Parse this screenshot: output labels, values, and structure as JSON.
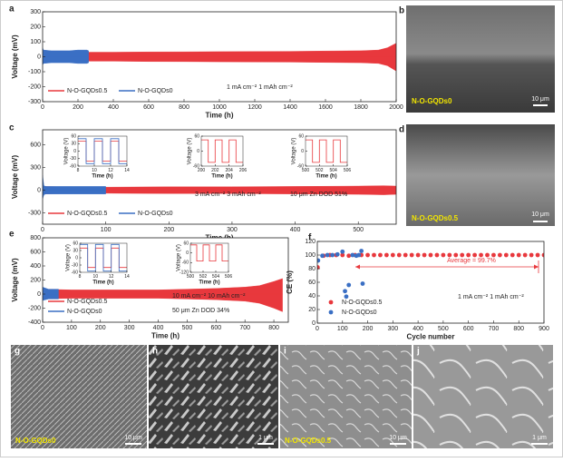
{
  "chart_data": [
    {
      "type": "area",
      "label": "a",
      "xlabel": "Time (h)",
      "ylabel": "Voltage (mV)",
      "xlim": [
        0,
        2000
      ],
      "xticks": [
        0,
        200,
        400,
        600,
        800,
        1000,
        1200,
        1400,
        1600,
        1800,
        2000
      ],
      "ylim": [
        -300,
        300
      ],
      "yticks": [
        -300,
        -200,
        -100,
        0,
        100,
        200,
        300
      ],
      "legend": "lower left",
      "annotations": [
        "1 mA cm⁻²  1 mAh cm⁻²"
      ],
      "series": [
        {
          "name": "N-O-GQDs0.5",
          "color": "#e8383d",
          "x": [
            0,
            100,
            200,
            400,
            600,
            800,
            1000,
            1200,
            1400,
            1600,
            1800,
            1900,
            1950,
            2000
          ],
          "values": [
            35,
            30,
            30,
            30,
            32,
            33,
            34,
            35,
            36,
            38,
            40,
            45,
            60,
            90
          ],
          "lows": [
            -35,
            -30,
            -30,
            -30,
            -32,
            -33,
            -34,
            -35,
            -36,
            -38,
            -40,
            -45,
            -60,
            -95
          ]
        },
        {
          "name": "N-O-GQDs0",
          "color": "#3a6fc4",
          "x": [
            0,
            5,
            50,
            100,
            150,
            200,
            250,
            260
          ],
          "values": [
            60,
            45,
            40,
            40,
            40,
            45,
            45,
            40
          ],
          "lows": [
            -55,
            -45,
            -40,
            -40,
            -40,
            -45,
            -45,
            -40
          ]
        }
      ]
    },
    {
      "type": "area",
      "label": "c",
      "xlabel": "Time (h)",
      "ylabel": "Voltage (mV)",
      "xlim": [
        0,
        560
      ],
      "xticks": [
        0,
        100,
        200,
        300,
        400,
        500
      ],
      "ylim": [
        -450,
        800
      ],
      "yticks": [
        -300,
        0,
        300,
        600
      ],
      "legend": "lower left",
      "annotations": [
        "3 mA cm⁻²  3 mAh cm⁻²",
        "10 μm Zn   DOD 51%"
      ],
      "series": [
        {
          "name": "N-O-GQDs0.5",
          "color": "#e8383d",
          "x": [
            0,
            50,
            100,
            200,
            300,
            400,
            500,
            540,
            560
          ],
          "values": [
            50,
            40,
            40,
            45,
            45,
            50,
            55,
            60,
            55
          ],
          "lows": [
            -50,
            -40,
            -40,
            -45,
            -45,
            -50,
            -55,
            -60,
            -55
          ]
        },
        {
          "name": "N-O-GQDs0",
          "color": "#3a6fc4",
          "x": [
            0,
            2,
            5,
            50,
            100
          ],
          "values": [
            200,
            60,
            50,
            50,
            50
          ],
          "lows": [
            -120,
            -60,
            -50,
            -50,
            -50
          ]
        }
      ],
      "insets": [
        {
          "type": "line",
          "xlabel": "Time (h)",
          "ylabel": "Voltage (V)",
          "xlim": [
            8,
            14
          ],
          "xticks": [
            8,
            10,
            12,
            14
          ],
          "ylim": [
            -60,
            60
          ],
          "yticks": [
            -60,
            -30,
            0,
            30,
            60
          ],
          "series": [
            {
              "color": "#e8383d",
              "x": [
                8,
                9,
                9,
                10,
                10,
                11,
                11,
                12,
                12,
                13,
                13,
                14
              ],
              "values": [
                40,
                40,
                -40,
                -40,
                40,
                40,
                -40,
                -40,
                40,
                40,
                -40,
                -40
              ]
            },
            {
              "color": "#3a6fc4",
              "x": [
                8,
                9,
                9,
                10,
                10,
                11,
                11,
                12,
                12,
                13,
                13,
                14
              ],
              "values": [
                50,
                50,
                -50,
                -50,
                50,
                50,
                -50,
                -50,
                50,
                50,
                -50,
                -50
              ]
            }
          ]
        },
        {
          "type": "line",
          "xlabel": "Time (h)",
          "ylabel": "Voltage (V)",
          "xlim": [
            200,
            206
          ],
          "xticks": [
            200,
            202,
            204,
            206
          ],
          "ylim": [
            -60,
            60
          ],
          "yticks": [
            -60,
            0,
            60
          ],
          "series": [
            {
              "color": "#e8383d",
              "x": [
                200,
                201,
                201,
                202,
                202,
                203,
                203,
                204,
                204,
                205,
                205,
                206
              ],
              "values": [
                45,
                45,
                -45,
                -45,
                45,
                45,
                -45,
                -45,
                45,
                45,
                -45,
                -45
              ]
            }
          ]
        },
        {
          "type": "line",
          "xlabel": "Time (h)",
          "ylabel": "Voltage (V)",
          "xlim": [
            500,
            506
          ],
          "xticks": [
            500,
            502,
            504,
            506
          ],
          "ylim": [
            -60,
            60
          ],
          "yticks": [
            -60,
            0,
            60
          ],
          "series": [
            {
              "color": "#e8383d",
              "x": [
                500,
                501,
                501,
                502,
                502,
                503,
                503,
                504,
                504,
                505,
                505,
                506
              ],
              "values": [
                45,
                45,
                -45,
                -45,
                45,
                45,
                -45,
                -45,
                45,
                45,
                -45,
                -45
              ]
            }
          ]
        }
      ]
    },
    {
      "type": "area",
      "label": "e",
      "xlabel": "Time (h)",
      "ylabel": "Voltage (mV)",
      "xlim": [
        0,
        850
      ],
      "xticks": [
        0,
        100,
        200,
        300,
        400,
        500,
        600,
        700,
        800
      ],
      "ylim": [
        -400,
        800
      ],
      "yticks": [
        -400,
        -200,
        0,
        200,
        400,
        600,
        800
      ],
      "legend": "lower left",
      "annotations": [
        "10 mA cm⁻²  10 mAh cm⁻²",
        "50 μm Zn    DOD 34%"
      ],
      "series": [
        {
          "name": "N-O-GQDs0.5",
          "color": "#e8383d",
          "x": [
            0,
            100,
            200,
            300,
            400,
            500,
            600,
            700,
            750,
            800,
            830
          ],
          "values": [
            70,
            60,
            60,
            60,
            60,
            70,
            80,
            100,
            120,
            180,
            220
          ],
          "lows": [
            -70,
            -60,
            -60,
            -60,
            -60,
            -70,
            -80,
            -100,
            -130,
            -200,
            -250
          ]
        },
        {
          "name": "N-O-GQDs0",
          "color": "#3a6fc4",
          "x": [
            0,
            20,
            40,
            55
          ],
          "values": [
            100,
            70,
            70,
            70
          ],
          "lows": [
            -90,
            -70,
            -70,
            -70
          ]
        }
      ],
      "insets": [
        {
          "type": "line",
          "xlabel": "Time (h)",
          "ylabel": "Voltage (V)",
          "xlim": [
            8,
            14
          ],
          "xticks": [
            8,
            10,
            12,
            14
          ],
          "ylim": [
            -60,
            60
          ],
          "yticks": [
            -60,
            -30,
            0,
            30,
            60
          ],
          "series": [
            {
              "color": "#e8383d",
              "x": [
                8,
                9,
                9,
                10,
                10,
                11,
                11,
                12,
                12,
                13,
                13,
                14
              ],
              "values": [
                40,
                40,
                -40,
                -40,
                40,
                40,
                -40,
                -40,
                40,
                40,
                -40,
                -40
              ]
            },
            {
              "color": "#3a6fc4",
              "x": [
                8,
                9,
                9,
                10,
                10,
                11,
                11,
                12,
                12,
                13,
                13,
                14
              ],
              "values": [
                55,
                55,
                -55,
                -55,
                55,
                55,
                -55,
                -55,
                55,
                55,
                -55,
                -55
              ]
            }
          ]
        },
        {
          "type": "line",
          "xlabel": "Time (h)",
          "ylabel": "Voltage (V)",
          "xlim": [
            500,
            506
          ],
          "xticks": [
            500,
            502,
            504,
            506
          ],
          "ylim": [
            -120,
            60
          ],
          "yticks": [
            -120,
            -60,
            0,
            60
          ],
          "series": [
            {
              "color": "#e8383d",
              "x": [
                500,
                501,
                501,
                502,
                502,
                503,
                503,
                504,
                504,
                505,
                505,
                506
              ],
              "values": [
                50,
                50,
                -50,
                -50,
                50,
                50,
                -50,
                -50,
                50,
                50,
                -50,
                -50
              ]
            }
          ]
        }
      ]
    },
    {
      "type": "scatter",
      "label": "f",
      "xlabel": "Cycle number",
      "ylabel": "CE (%)",
      "xlim": [
        0,
        900
      ],
      "xticks": [
        0,
        100,
        200,
        300,
        400,
        500,
        600,
        700,
        800,
        900
      ],
      "ylim": [
        0,
        120
      ],
      "yticks": [
        0,
        20,
        40,
        60,
        80,
        100,
        120
      ],
      "legend": "lower left",
      "annotations": [
        "Average = 99.7%",
        "1 mA cm⁻²  1 mAh cm⁻²"
      ],
      "series": [
        {
          "name": "N-O-GQDs0.5",
          "color": "#e8383d",
          "x": [
            1,
            25,
            50,
            75,
            100,
            125,
            150,
            175,
            200,
            225,
            250,
            275,
            300,
            325,
            350,
            375,
            400,
            425,
            450,
            475,
            500,
            525,
            550,
            575,
            600,
            625,
            650,
            675,
            700,
            725,
            750,
            775,
            800,
            825,
            850,
            875,
            900
          ],
          "values": [
            82,
            99,
            100,
            100,
            100,
            99,
            100,
            100,
            100,
            100,
            100,
            100,
            100,
            100,
            100,
            100,
            100,
            100,
            100,
            100,
            100,
            100,
            100,
            100,
            100,
            100,
            100,
            100,
            100,
            100,
            100,
            100,
            100,
            100,
            100,
            100,
            100
          ]
        },
        {
          "name": "N-O-GQDs0",
          "color": "#3a6fc4",
          "x": [
            3,
            20,
            40,
            60,
            80,
            100,
            110,
            115,
            125,
            140,
            155,
            165,
            175,
            180
          ],
          "values": [
            92,
            99,
            100,
            100,
            101,
            105,
            47,
            39,
            56,
            100,
            99,
            100,
            106,
            58
          ]
        }
      ]
    }
  ],
  "images": [
    {
      "label": "b",
      "caption": "N-O-GQDs0",
      "scale_bar": "10 μm"
    },
    {
      "label": "d",
      "caption": "N-O-GQDs0.5",
      "scale_bar": "10 μm"
    },
    {
      "label": "g",
      "caption": "N-O-GQDs0",
      "scale_bar": "10 μm"
    },
    {
      "label": "h",
      "scale_bar": "1 μm"
    },
    {
      "label": "i",
      "caption": "N-O-GQDs0.5",
      "scale_bar": "10 μm"
    },
    {
      "label": "j",
      "scale_bar": "1 μm"
    }
  ]
}
